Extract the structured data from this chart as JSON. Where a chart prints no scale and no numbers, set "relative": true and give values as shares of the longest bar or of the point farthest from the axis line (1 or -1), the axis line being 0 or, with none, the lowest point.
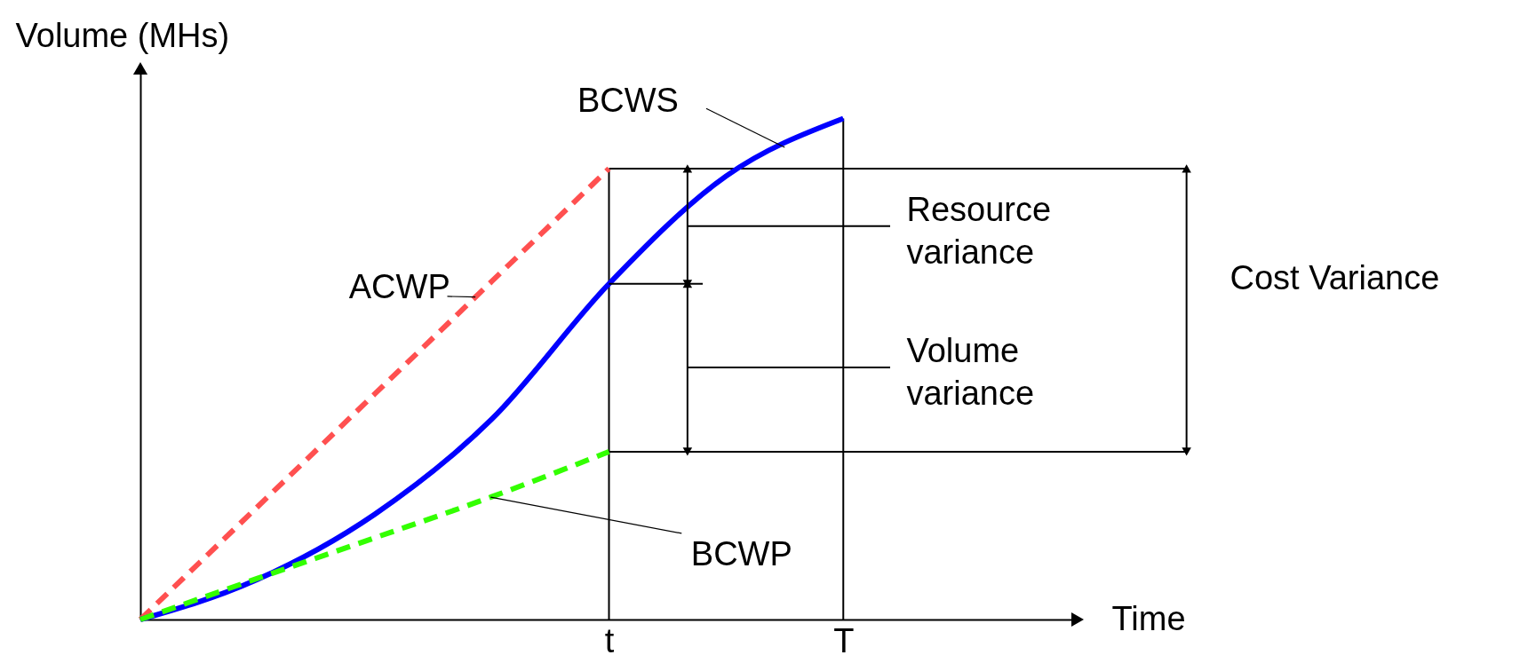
{
  "chart_data": {
    "type": "line",
    "relative": true,
    "xlabel": "Time",
    "ylabel": "Volume (MHs)",
    "categories": [
      null,
      null,
      null,
      null,
      "t",
      null,
      "T",
      null,
      null
    ],
    "series": [
      {
        "name": "ACWP",
        "color": "#ff5050",
        "line_style": "dashed",
        "values": [
          0,
          0.225,
          0.45,
          0.675,
          0.9,
          null,
          null,
          null,
          null
        ]
      },
      {
        "name": "BCWS",
        "color": "#0000ff",
        "line_style": "solid",
        "values": [
          0,
          0.08,
          0.21,
          0.4,
          0.67,
          0.885,
          1,
          null,
          null
        ]
      },
      {
        "name": "BCWP",
        "color": "#33ff00",
        "line_style": "dashed",
        "values": [
          0,
          0.082,
          0.163,
          0.245,
          0.335,
          null,
          null,
          null,
          null
        ]
      }
    ],
    "ref_lines": [
      {
        "axis": "x",
        "value": "t"
      },
      {
        "axis": "x",
        "value": "T"
      },
      {
        "axis": "y",
        "value": 0.9
      },
      {
        "axis": "y",
        "value": 0.335
      }
    ],
    "annotations": [
      "Resource variance",
      "Volume variance",
      "Cost Variance"
    ]
  }
}
